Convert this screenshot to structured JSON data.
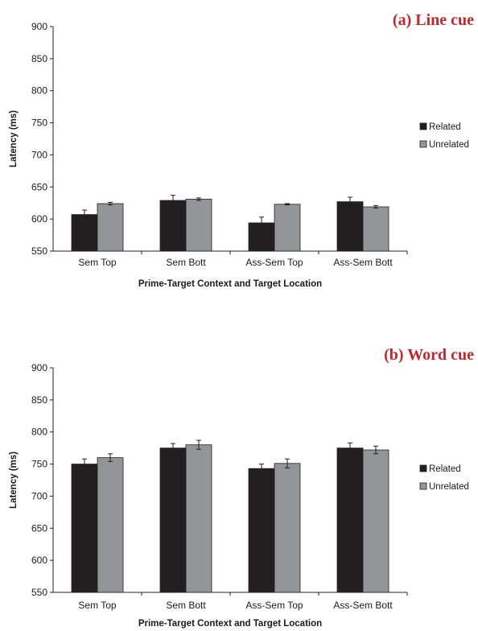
{
  "colors": {
    "related": "#231f20",
    "unrelated": "#939598",
    "title": "#c0282d"
  },
  "chart_data": [
    {
      "type": "bar",
      "title": "(a) Line cue",
      "xlabel": "Prime-Target Context and Target Location",
      "ylabel": "Latency (ms)",
      "ylim": [
        550,
        900
      ],
      "yticks": [
        550,
        600,
        650,
        700,
        750,
        800,
        850,
        900
      ],
      "categories": [
        "Sem Top",
        "Sem Bott",
        "Ass-Sem Top",
        "Ass-Sem Bott"
      ],
      "legend_position": "right",
      "series": [
        {
          "name": "Related",
          "values": [
            607,
            629,
            594,
            627
          ],
          "errors": [
            7,
            8,
            9,
            7
          ]
        },
        {
          "name": "Unrelated",
          "values": [
            624,
            631,
            623,
            619
          ],
          "errors": [
            2,
            2,
            1,
            2
          ]
        }
      ]
    },
    {
      "type": "bar",
      "title": "(b) Word cue",
      "xlabel": "Prime-Target Context and Target Location",
      "ylabel": "Latency (ms)",
      "ylim": [
        550,
        900
      ],
      "yticks": [
        550,
        600,
        650,
        700,
        750,
        800,
        850,
        900
      ],
      "categories": [
        "Sem Top",
        "Sem Bott",
        "Ass-Sem Top",
        "Ass-Sem Bott"
      ],
      "legend_position": "right",
      "series": [
        {
          "name": "Related",
          "values": [
            750,
            775,
            743,
            775
          ],
          "errors": [
            8,
            7,
            7,
            8
          ]
        },
        {
          "name": "Unrelated",
          "values": [
            760,
            780,
            751,
            772
          ],
          "errors": [
            6,
            7,
            7,
            6
          ]
        }
      ]
    }
  ]
}
